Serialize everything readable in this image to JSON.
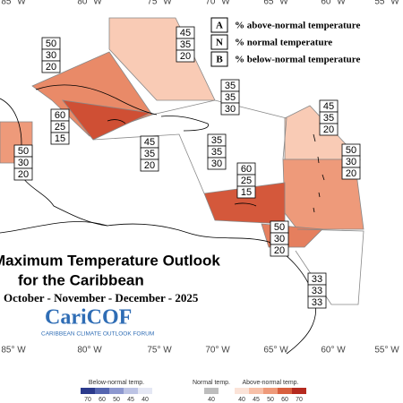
{
  "longitude_labels_top": [
    "85° W",
    "80° W",
    "75° W",
    "70° W",
    "65° W",
    "60° W",
    "55° W"
  ],
  "longitude_labels_bottom": [
    "85° W",
    "80° W",
    "75° W",
    "70° W",
    "65° W",
    "60° W",
    "55° W"
  ],
  "legend": [
    {
      "letter": "A",
      "text": "% above-normal temperature"
    },
    {
      "letter": "N",
      "text": "% normal temperature"
    },
    {
      "letter": "B",
      "text": "% below-normal temperature"
    }
  ],
  "title": {
    "line1": "Maximum Temperature Outlook",
    "line2": "for the Caribbean",
    "period": "October - November - December - 2025"
  },
  "logo": {
    "name": "CariCOF",
    "subtitle": "CARIBBEAN CLIMATE OUTLOOK FORUM"
  },
  "regions": [
    {
      "above": 45,
      "normal": 35,
      "below": 20
    },
    {
      "above": 50,
      "normal": 30,
      "below": 20
    },
    {
      "above": 35,
      "normal": 35,
      "below": 30
    },
    {
      "above": 45,
      "normal": 35,
      "below": 20
    },
    {
      "above": 60,
      "normal": 25,
      "below": 15
    },
    {
      "above": 50,
      "normal": 30,
      "below": 20
    },
    {
      "above": 45,
      "normal": 35,
      "below": 20
    },
    {
      "above": 35,
      "normal": 35,
      "below": 30
    },
    {
      "above": 50,
      "normal": 30,
      "below": 20
    },
    {
      "above": 60,
      "normal": 25,
      "below": 15
    },
    {
      "above": 50,
      "normal": 30,
      "below": 20
    },
    {
      "above": 33,
      "normal": 33,
      "below": 33
    }
  ],
  "color_bar": {
    "below": {
      "title": "Below-normal temp.",
      "labels": [
        70,
        60,
        50,
        45,
        40
      ],
      "colors": [
        "#2b3a8c",
        "#5566b0",
        "#8d98cf",
        "#bcc3e4",
        "#e4e7f4"
      ]
    },
    "normal": {
      "title": "Normal temp.",
      "labels": [
        40
      ],
      "colors": [
        "#bdbdbd"
      ]
    },
    "above": {
      "title": "Above-normal temp.",
      "labels": [
        40,
        45,
        50,
        60,
        70
      ],
      "colors": [
        "#fbe3d8",
        "#f7c0a8",
        "#ee9a7a",
        "#d8603f",
        "#b52a1f"
      ]
    }
  }
}
